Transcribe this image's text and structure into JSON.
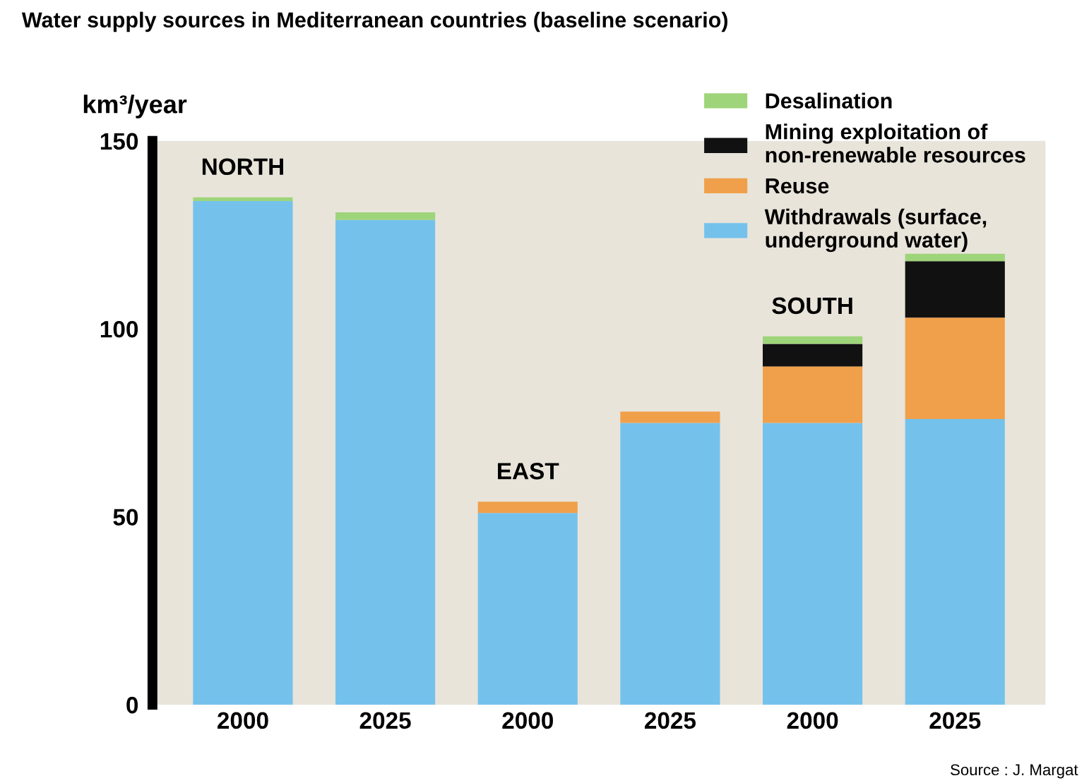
{
  "chart_data": {
    "type": "bar",
    "stacked": true,
    "title": "Water supply sources in Mediterranean countries (baseline scenario)",
    "ylabel": "km³/year",
    "categories": [
      "2000",
      "2025",
      "2000",
      "2025",
      "2000",
      "2025"
    ],
    "series": [
      {
        "name": "Withdrawals (surface,\nunderground water)",
        "color": "#74c2ec",
        "values": [
          134,
          129,
          51,
          75,
          75,
          76
        ]
      },
      {
        "name": "Reuse",
        "color": "#f0a04a",
        "values": [
          0,
          0,
          3,
          3,
          15,
          27
        ]
      },
      {
        "name": "Mining exploitation of\nnon-renewable resources",
        "color": "#111111",
        "values": [
          0,
          0,
          0,
          0,
          6,
          15
        ]
      },
      {
        "name": "Desalination",
        "color": "#9ed47a",
        "values": [
          1,
          2,
          0,
          0,
          2,
          2
        ]
      }
    ],
    "ylim": [
      0,
      150
    ],
    "yticks": [
      0,
      50,
      100,
      150
    ],
    "grid": false,
    "legend": "top right",
    "annotations": [
      "NORTH",
      "EAST",
      "SOUTH",
      "Source : J. Margat"
    ]
  }
}
